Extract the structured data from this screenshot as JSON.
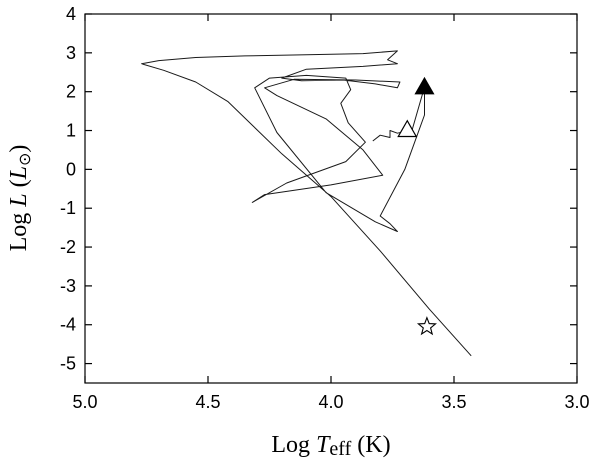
{
  "chart_data": {
    "type": "line",
    "xlabel": "Log Teff (K)",
    "xlabel_parts": {
      "prefix": "Log ",
      "symbol": "T",
      "sub": "eff",
      "suffix": " (K)"
    },
    "ylabel": "Log L (L⊙)",
    "ylabel_parts": {
      "prefix": "Log ",
      "symbol": "L",
      "open": " (",
      "sym2": "L",
      "sub": "⊙",
      "close": ")"
    },
    "xlim": [
      5.0,
      3.0
    ],
    "ylim": [
      -5.5,
      4.0
    ],
    "x_ticks": [
      5.0,
      4.5,
      4.0,
      3.5,
      3.0
    ],
    "x_tick_labels": [
      "5.0",
      "4.5",
      "4.0",
      "3.5",
      "3.0"
    ],
    "y_ticks": [
      4,
      3,
      2,
      1,
      0,
      -1,
      -2,
      -3,
      -4,
      -5
    ],
    "y_tick_labels": [
      "4",
      "3",
      "2",
      "1",
      "0",
      "-1",
      "-2",
      "-3",
      "-4",
      "-5"
    ],
    "grid": false,
    "series": [
      {
        "x": [
          3.43,
          3.6,
          3.8,
          4.0,
          4.2,
          4.42,
          4.55,
          4.68,
          4.76,
          4.77,
          4.7,
          4.55,
          4.35,
          4.1,
          3.87,
          3.73,
          3.77,
          3.73,
          3.87,
          4.1,
          4.2,
          4.12,
          3.95,
          3.82,
          3.73,
          3.72,
          3.9,
          4.15,
          4.27,
          4.22,
          4.02,
          3.87,
          3.79,
          4.0,
          4.27,
          4.32,
          4.18,
          3.94,
          3.86,
          3.93,
          3.96,
          3.92,
          3.94,
          4.1,
          4.25,
          4.31,
          4.22,
          4.02,
          3.82,
          3.73,
          3.76,
          3.8,
          3.7,
          3.62,
          3.62,
          3.67,
          3.73,
          3.76,
          3.76,
          3.8,
          3.83
        ],
        "y": [
          -4.8,
          -3.6,
          -2.1,
          -0.7,
          0.4,
          1.75,
          2.25,
          2.55,
          2.7,
          2.72,
          2.8,
          2.88,
          2.92,
          2.95,
          2.98,
          3.05,
          2.82,
          2.72,
          2.65,
          2.58,
          2.35,
          2.28,
          2.3,
          2.2,
          2.1,
          2.25,
          2.3,
          2.32,
          2.1,
          1.9,
          1.3,
          0.5,
          -0.15,
          -0.4,
          -0.65,
          -0.85,
          -0.35,
          0.2,
          0.7,
          1.2,
          1.7,
          2.05,
          2.35,
          2.42,
          2.35,
          2.1,
          0.95,
          -0.6,
          -1.35,
          -1.6,
          -1.4,
          -1.2,
          0.0,
          1.4,
          2.12,
          1.02,
          0.93,
          1.0,
          0.82,
          0.88,
          0.73
        ]
      }
    ],
    "markers": [
      {
        "name": "filled-triangle",
        "shape": "triangle",
        "filled": true,
        "x": 3.62,
        "y": 2.12
      },
      {
        "name": "open-triangle",
        "shape": "triangle",
        "filled": false,
        "x": 3.69,
        "y": 1.02
      },
      {
        "name": "open-star",
        "shape": "star",
        "filled": false,
        "x": 3.61,
        "y": -4.05
      }
    ]
  }
}
